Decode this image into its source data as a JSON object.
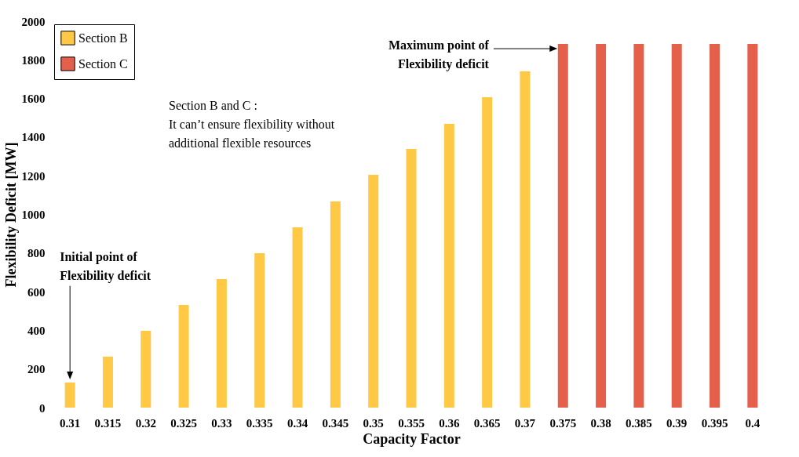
{
  "chart_data": {
    "type": "bar",
    "xlabel": "Capacity Factor",
    "ylabel": "Flexibility Deficit [MW]",
    "categories": [
      "0.31",
      "0.315",
      "0.32",
      "0.325",
      "0.33",
      "0.335",
      "0.34",
      "0.345",
      "0.35",
      "0.355",
      "0.36",
      "0.365",
      "0.37",
      "0.375",
      "0.38",
      "0.385",
      "0.39",
      "0.395",
      "0.4"
    ],
    "series": [
      {
        "name": "Section B",
        "color": "#ffc845",
        "values": [
          130,
          264,
          398,
          531,
          665,
          799,
          933,
          1067,
          1205,
          1339,
          1469,
          1606,
          1740,
          null,
          null,
          null,
          null,
          null,
          null
        ]
      },
      {
        "name": "Section C",
        "color": "#e4604a",
        "values": [
          null,
          null,
          null,
          null,
          null,
          null,
          null,
          null,
          null,
          null,
          null,
          null,
          null,
          1882,
          1882,
          1882,
          1882,
          1882,
          1882
        ]
      }
    ],
    "ylim": [
      0,
      2000
    ],
    "yticks": [
      0,
      200,
      400,
      600,
      800,
      1000,
      1200,
      1400,
      1600,
      1800,
      2000
    ],
    "grid": false,
    "legend": "top left",
    "annotations": [
      "Initial point of\nFlexibility deficit",
      "Maximum point of\nFlexibility deficit",
      "Section B and C :\nIt can’t ensure flexibility without\nadditional flexible resources"
    ]
  }
}
